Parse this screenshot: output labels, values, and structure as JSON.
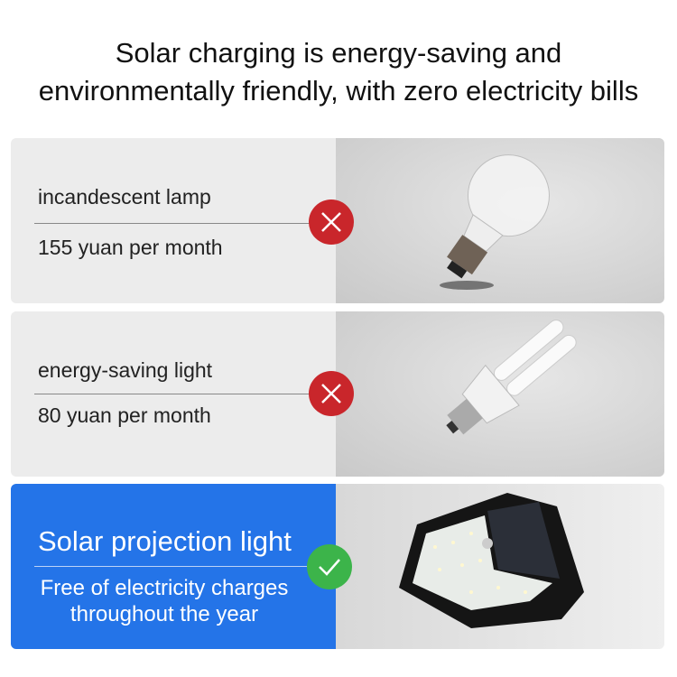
{
  "title": {
    "line1": "Solar charging is energy-saving and",
    "line2": "environmentally friendly, with zero electricity bills"
  },
  "rows": [
    {
      "name": "incandescent lamp",
      "cost": "155 yuan per month",
      "status": "cross-icon",
      "color": "#c9262b"
    },
    {
      "name": "energy-saving light",
      "cost": "80 yuan per month",
      "status": "cross-icon",
      "color": "#c9262b"
    },
    {
      "name": "Solar projection light",
      "cost_line1": "Free of electricity charges",
      "cost_line2": "throughout the year",
      "status": "check-icon",
      "color": "#3cb44a",
      "panel_color": "#2474e8"
    }
  ]
}
